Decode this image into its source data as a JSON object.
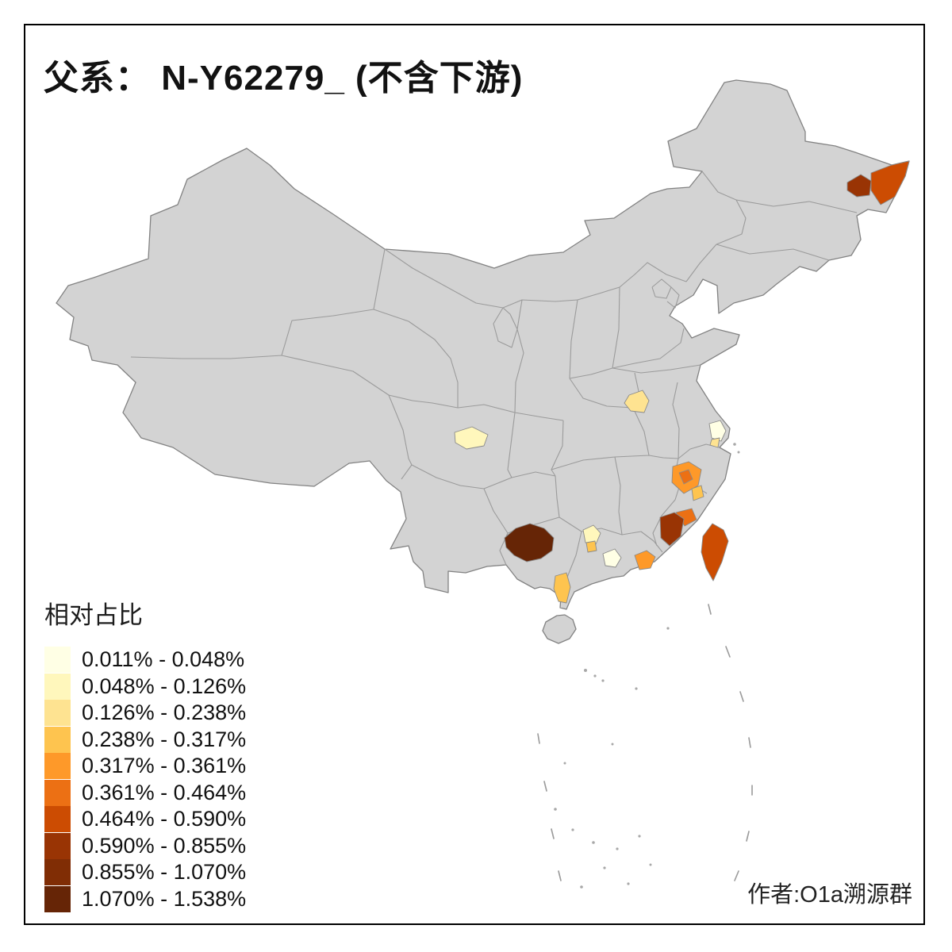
{
  "title": "父系： N-Y62279_ (不含下游)",
  "credit": "作者:O1a溯源群",
  "legend": {
    "title": "相对占比",
    "classes": [
      {
        "label": "0.011% - 0.048%",
        "color": "#ffffe5"
      },
      {
        "label": "0.048% - 0.126%",
        "color": "#fff7bc"
      },
      {
        "label": "0.126% - 0.238%",
        "color": "#fee391"
      },
      {
        "label": "0.238% - 0.317%",
        "color": "#fec44f"
      },
      {
        "label": "0.317% - 0.361%",
        "color": "#fe9929"
      },
      {
        "label": "0.361% - 0.464%",
        "color": "#ec7014"
      },
      {
        "label": "0.464% - 0.590%",
        "color": "#cc4c02"
      },
      {
        "label": "0.590% - 0.855%",
        "color": "#993404"
      },
      {
        "label": "0.855% - 1.070%",
        "color": "#802d05"
      },
      {
        "label": "1.070% - 1.538%",
        "color": "#662506"
      }
    ]
  },
  "map": {
    "land_color": "#d3d3d3",
    "outline_color": "#828282",
    "sea_color": "#ffffff",
    "regions": {
      "ne_heilongjiang_west": {
        "color": "#993404",
        "class": "0.590% - 0.855%"
      },
      "ne_heilongjiang_east": {
        "color": "#cc4c02",
        "class": "0.464% - 0.590%"
      },
      "jiangsu_central": {
        "color": "#fee391",
        "class": "0.126% - 0.238%"
      },
      "chengdu": {
        "color": "#fff7bc",
        "class": "0.048% - 0.126%"
      },
      "shanghai_area": {
        "color": "#ffffe5",
        "class": "0.011% - 0.048%"
      },
      "shanghai_south": {
        "color": "#fee391",
        "class": "0.126% - 0.238%"
      },
      "fujian_northeast": {
        "color": "#fe9929",
        "class": "0.317% - 0.361%"
      },
      "fujian_ne_inner": {
        "color": "#ec7014",
        "class": "0.361% - 0.464%"
      },
      "fuzhou_coast": {
        "color": "#fec44f",
        "class": "0.238% - 0.317%"
      },
      "putian": {
        "color": "#ec7014",
        "class": "0.361% - 0.464%"
      },
      "minnan_coast": {
        "color": "#993404",
        "class": "0.590% - 0.855%"
      },
      "taiwan": {
        "color": "#cc4c02",
        "class": "0.464% - 0.590%"
      },
      "guizhou_southwest": {
        "color": "#662506",
        "class": "1.070% - 1.538%"
      },
      "guangxi_west_pale": {
        "color": "#fff7bc",
        "class": "0.048% - 0.126%"
      },
      "guangxi_west_gold": {
        "color": "#fec44f",
        "class": "0.238% - 0.317%"
      },
      "guangdong_west_pale": {
        "color": "#ffffe5",
        "class": "0.011% - 0.048%"
      },
      "pearl_delta": {
        "color": "#fe9929",
        "class": "0.317% - 0.361%"
      },
      "leizhou_peninsula": {
        "color": "#fec44f",
        "class": "0.238% - 0.317%"
      }
    }
  },
  "chart_data": {
    "type": "choropleth",
    "title": "父系： N-Y62279_ (不含下游)",
    "legend_title": "相对占比",
    "unit": "%",
    "no_data_color": "#d3d3d3",
    "classes": [
      {
        "range": "0.011% - 0.048%",
        "color": "#ffffe5"
      },
      {
        "range": "0.048% - 0.126%",
        "color": "#fff7bc"
      },
      {
        "range": "0.126% - 0.238%",
        "color": "#fee391"
      },
      {
        "range": "0.238% - 0.317%",
        "color": "#fec44f"
      },
      {
        "range": "0.317% - 0.361%",
        "color": "#fe9929"
      },
      {
        "range": "0.361% - 0.464%",
        "color": "#ec7014"
      },
      {
        "range": "0.464% - 0.590%",
        "color": "#cc4c02"
      },
      {
        "range": "0.590% - 0.855%",
        "color": "#993404"
      },
      {
        "range": "0.855% - 1.070%",
        "color": "#802d05"
      },
      {
        "range": "1.070% - 1.538%",
        "color": "#662506"
      }
    ],
    "highlighted_regions": [
      {
        "id": "ne_heilongjiang_west",
        "value_range": "0.590% - 0.855%"
      },
      {
        "id": "ne_heilongjiang_east",
        "value_range": "0.464% - 0.590%"
      },
      {
        "id": "jiangsu_central",
        "value_range": "0.126% - 0.238%"
      },
      {
        "id": "chengdu",
        "value_range": "0.048% - 0.126%"
      },
      {
        "id": "shanghai_area",
        "value_range": "0.011% - 0.048%"
      },
      {
        "id": "fujian_northeast",
        "value_range": "0.317% - 0.361%"
      },
      {
        "id": "fuzhou_coast",
        "value_range": "0.238% - 0.317%"
      },
      {
        "id": "putian",
        "value_range": "0.361% - 0.464%"
      },
      {
        "id": "minnan_coast",
        "value_range": "0.590% - 0.855%"
      },
      {
        "id": "taiwan",
        "value_range": "0.464% - 0.590%"
      },
      {
        "id": "guizhou_southwest",
        "value_range": "1.070% - 1.538%"
      },
      {
        "id": "guangxi_west_pale",
        "value_range": "0.048% - 0.126%"
      },
      {
        "id": "guangdong_west_pale",
        "value_range": "0.011% - 0.048%"
      },
      {
        "id": "pearl_delta",
        "value_range": "0.317% - 0.361%"
      },
      {
        "id": "leizhou_peninsula",
        "value_range": "0.238% - 0.317%"
      }
    ],
    "credit": "作者:O1a溯源群"
  }
}
